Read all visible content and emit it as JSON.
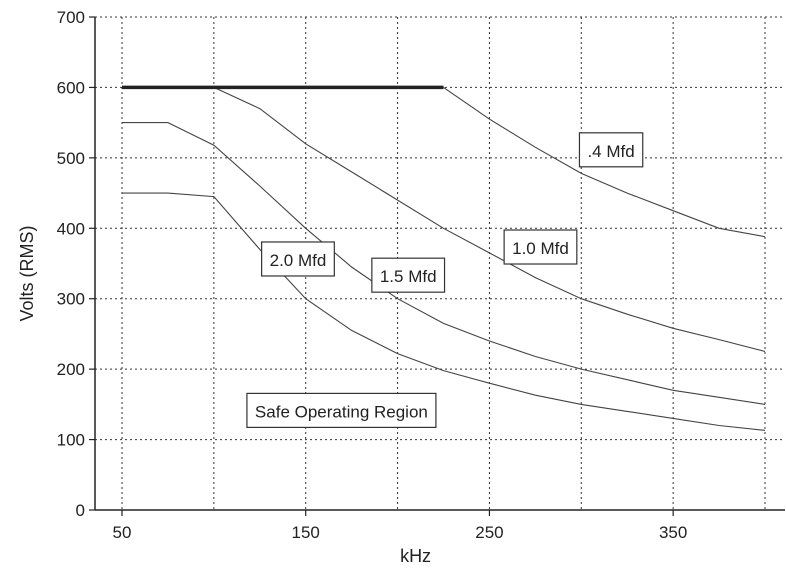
{
  "chart_data": {
    "type": "line",
    "title": "",
    "xlabel": "kHz",
    "ylabel": "Volts (RMS)",
    "xlim": [
      50,
      400
    ],
    "ylim": [
      0,
      700
    ],
    "xticks": [
      50,
      150,
      250,
      350
    ],
    "xgrid": [
      50,
      100,
      150,
      200,
      250,
      300,
      350,
      400
    ],
    "yticks": [
      0,
      100,
      200,
      300,
      400,
      500,
      600,
      700
    ],
    "grid": true,
    "limit_line": {
      "x": [
        50,
        225
      ],
      "y": [
        600,
        600
      ]
    },
    "series": [
      {
        "name": ".4 Mfd",
        "x": [
          225,
          250,
          275,
          300,
          325,
          350,
          375,
          400
        ],
        "y": [
          600,
          555,
          515,
          478,
          450,
          425,
          400,
          388
        ]
      },
      {
        "name": "1.0 Mfd",
        "x": [
          100,
          125,
          150,
          175,
          200,
          225,
          250,
          275,
          300,
          325,
          350,
          375,
          400
        ],
        "y": [
          600,
          570,
          520,
          480,
          440,
          400,
          365,
          330,
          300,
          278,
          258,
          242,
          225
        ]
      },
      {
        "name": "1.5 Mfd",
        "x": [
          50,
          75,
          100,
          125,
          150,
          175,
          200,
          225,
          250,
          275,
          300,
          325,
          350,
          375,
          400
        ],
        "y": [
          550,
          550,
          518,
          460,
          400,
          345,
          300,
          265,
          240,
          218,
          200,
          185,
          170,
          160,
          150
        ]
      },
      {
        "name": "2.0 Mfd",
        "x": [
          50,
          75,
          100,
          125,
          150,
          175,
          200,
          225,
          250,
          275,
          300,
          325,
          350,
          375,
          400
        ],
        "y": [
          450,
          450,
          445,
          370,
          300,
          255,
          222,
          198,
          180,
          163,
          150,
          140,
          130,
          120,
          113
        ]
      }
    ],
    "annotations": [
      {
        "text": ".4 Mfd",
        "x": 299,
        "y": 510
      },
      {
        "text": "1.0 Mfd",
        "x": 258,
        "y": 372
      },
      {
        "text": "1.5 Mfd",
        "x": 186,
        "y": 332
      },
      {
        "text": "2.0 Mfd",
        "x": 126,
        "y": 355
      },
      {
        "text": "Safe Operating Region",
        "x": 118,
        "y": 140
      }
    ]
  }
}
